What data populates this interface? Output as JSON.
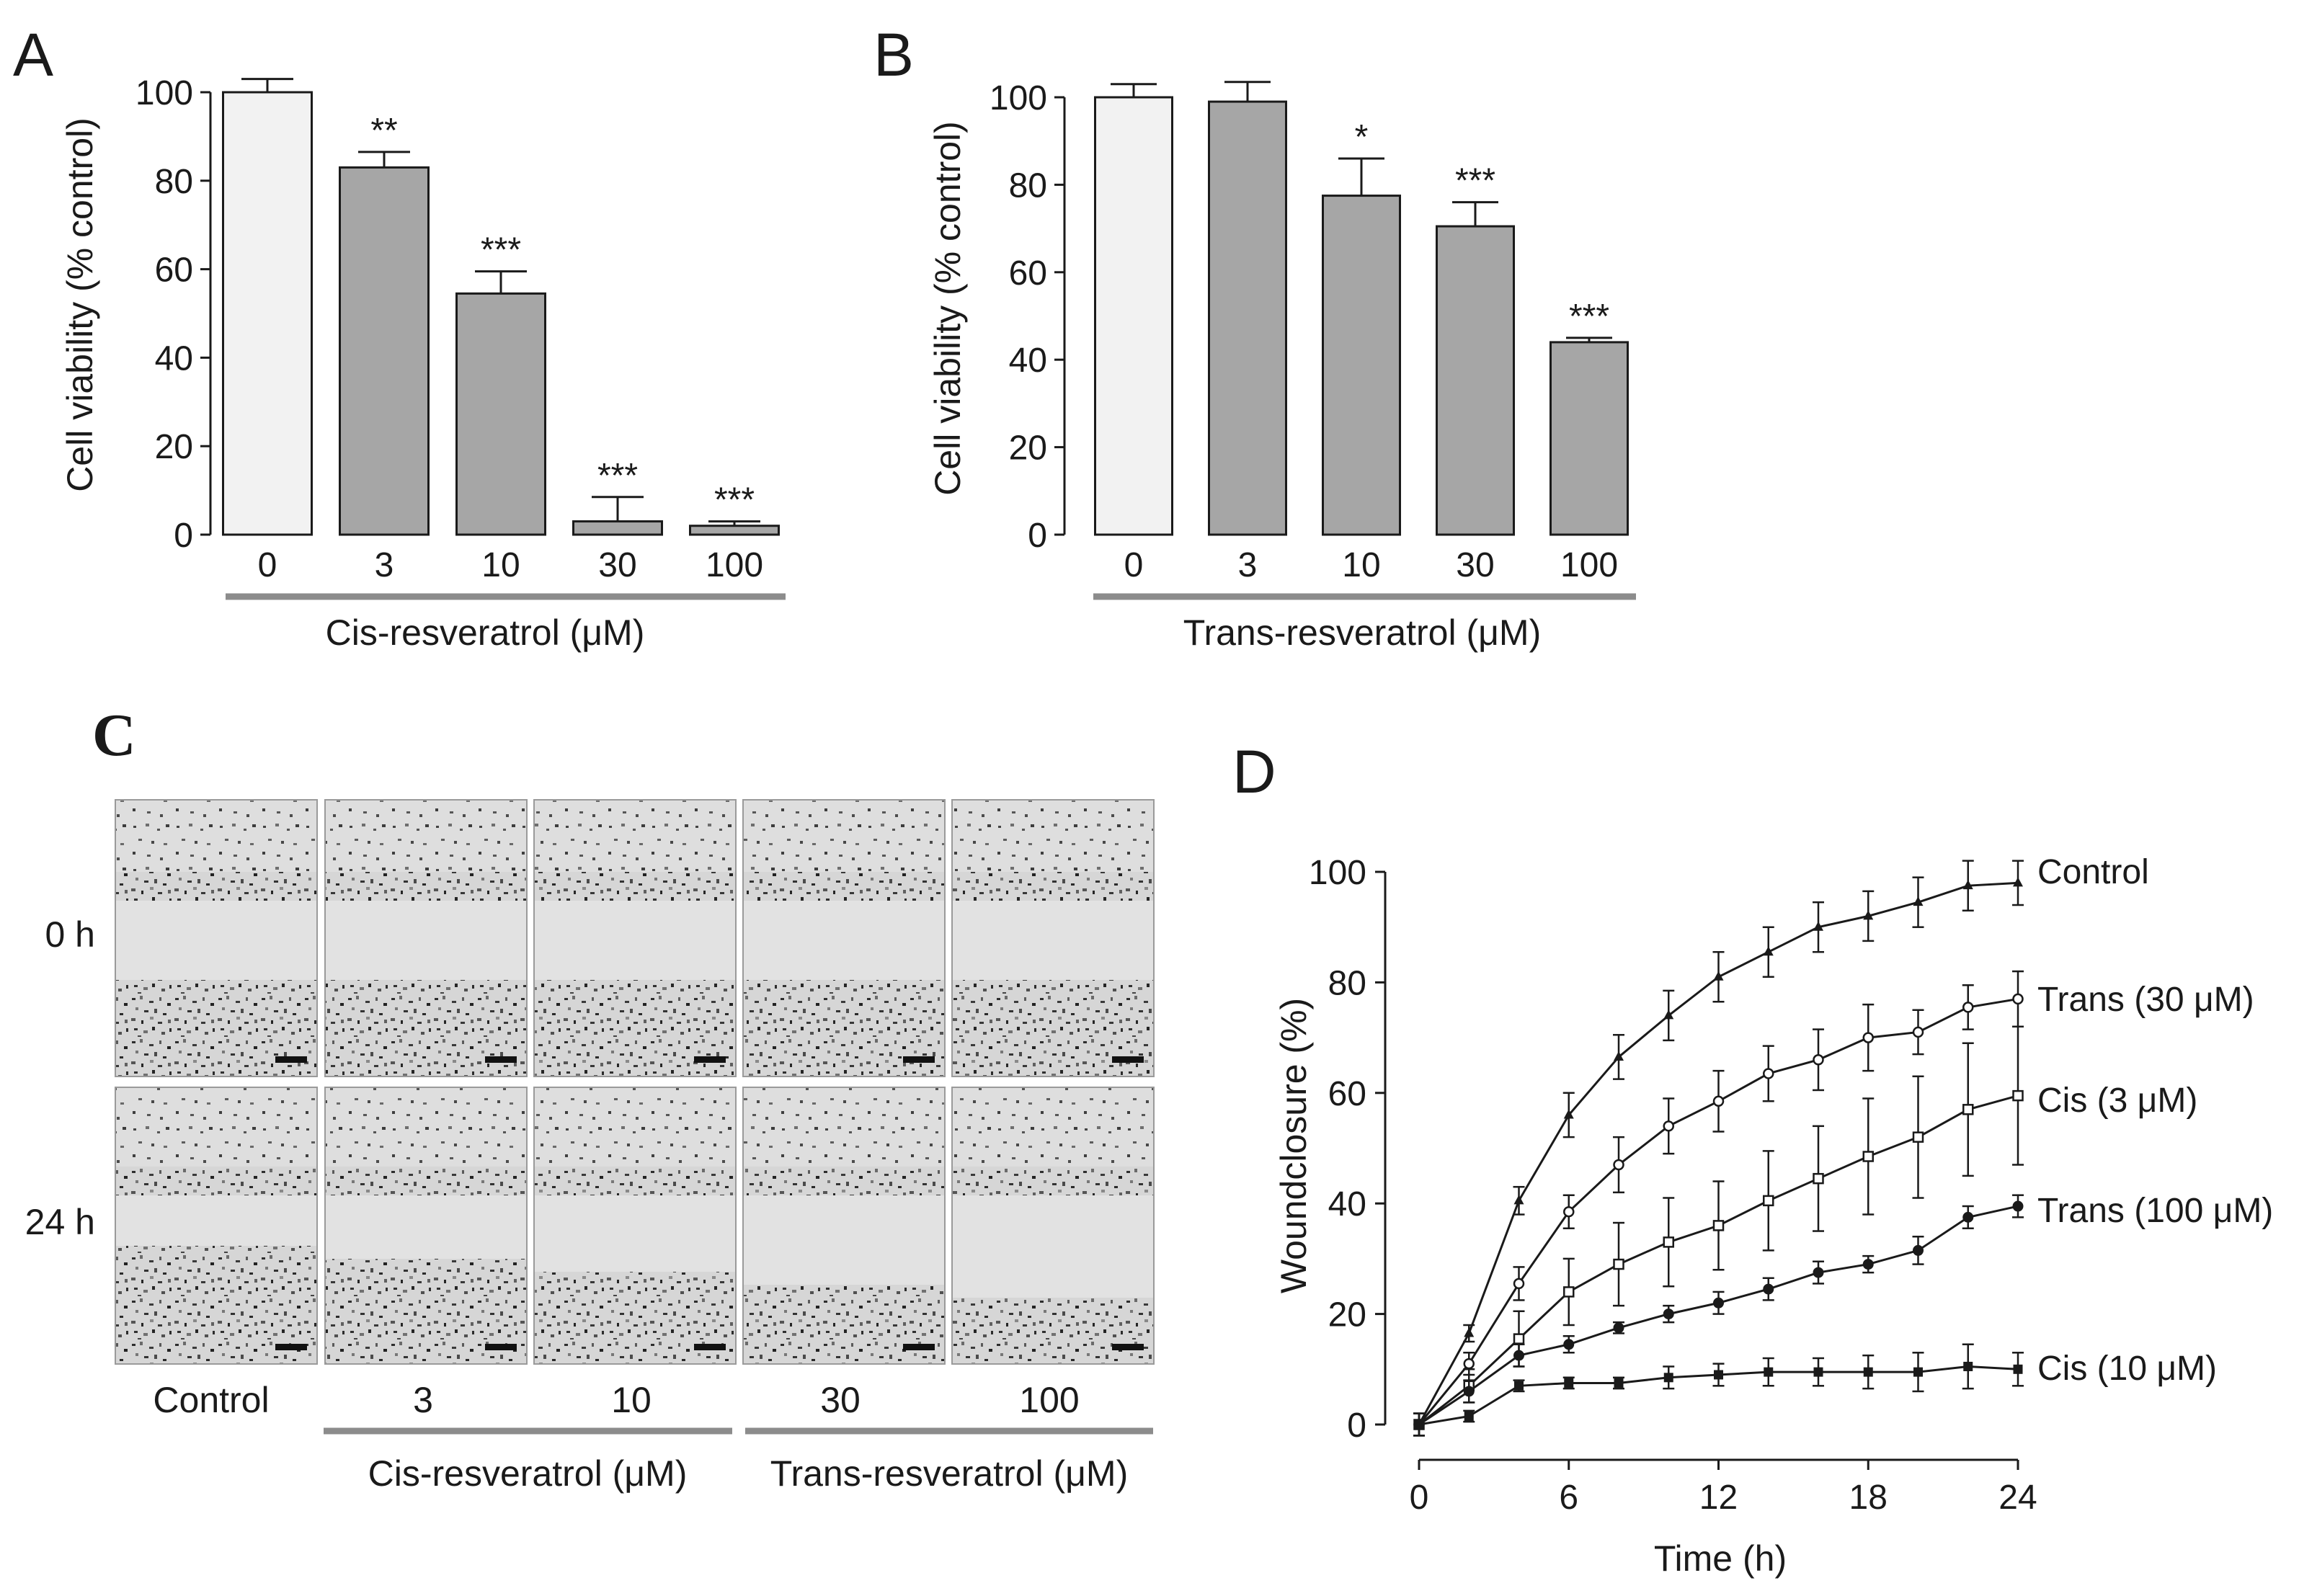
{
  "panel_labels": {
    "a": "A",
    "b": "B",
    "c": "C",
    "d": "D"
  },
  "colors": {
    "axis": "#1a1a1a",
    "control_bar": "#f2f2f2",
    "treated_bar": "#a6a6a6",
    "group_line": "#8c8c8c",
    "micro_bg": "#e2e2e2",
    "micro_cells": "#555555"
  },
  "chart_data": [
    {
      "id": "A",
      "type": "bar",
      "title": "",
      "categories": [
        "0",
        "3",
        "10",
        "30",
        "100"
      ],
      "values": [
        100,
        83,
        54.5,
        3,
        2
      ],
      "errors": [
        3,
        3.5,
        5,
        5.5,
        1
      ],
      "significance": [
        "",
        "**",
        "***",
        "***",
        "***"
      ],
      "ylabel": "Cell viability (% control)",
      "xlabel": "Cis-resveratrol (μM)",
      "ylim": [
        0,
        100
      ],
      "yticks": [
        0,
        20,
        40,
        60,
        80,
        100
      ]
    },
    {
      "id": "B",
      "type": "bar",
      "title": "",
      "categories": [
        "0",
        "3",
        "10",
        "30",
        "100"
      ],
      "values": [
        100,
        99,
        77.5,
        70.5,
        44
      ],
      "errors": [
        3,
        4.5,
        8.5,
        5.5,
        1
      ],
      "significance": [
        "",
        "",
        "*",
        "***",
        "***"
      ],
      "ylabel": "Cell viability (% control)",
      "xlabel": "Trans-resveratrol (μM)",
      "ylim": [
        0,
        100
      ],
      "yticks": [
        0,
        20,
        40,
        60,
        80,
        100
      ]
    },
    {
      "id": "D",
      "type": "line",
      "title": "",
      "xlabel": "Time (h)",
      "ylabel": "Woundclosure (%)",
      "xlim": [
        0,
        24
      ],
      "ylim": [
        0,
        100
      ],
      "xticks": [
        0,
        6,
        12,
        18,
        24
      ],
      "yticks": [
        0,
        20,
        40,
        60,
        80,
        100
      ],
      "x": [
        0,
        2,
        4,
        6,
        8,
        10,
        12,
        14,
        16,
        18,
        20,
        22,
        24
      ],
      "series": [
        {
          "name": "Control",
          "marker": "triangle",
          "values": [
            0,
            16.5,
            40.5,
            56,
            66.5,
            74,
            81,
            85.5,
            90,
            92,
            94.5,
            97.5,
            98
          ],
          "errors": [
            2,
            1.5,
            2.5,
            4,
            4,
            4.5,
            4.5,
            4.5,
            4.5,
            4.5,
            4.5,
            4.5,
            4
          ]
        },
        {
          "name": "Trans (30 μM)",
          "marker": "open-circle",
          "values": [
            0,
            11,
            25.5,
            38.5,
            47,
            54,
            58.5,
            63.5,
            66,
            70,
            71,
            75.5,
            77
          ],
          "errors": [
            2,
            2,
            3,
            3,
            5,
            5,
            5.5,
            5,
            5.5,
            6,
            4,
            4,
            5
          ]
        },
        {
          "name": "Cis (3 μM)",
          "marker": "open-square",
          "values": [
            0,
            7,
            15.5,
            24,
            29,
            33,
            36,
            40.5,
            44.5,
            48.5,
            52,
            57,
            59.5
          ],
          "errors": [
            2,
            3,
            5,
            6,
            7.5,
            8,
            8,
            9,
            9.5,
            10.5,
            11,
            12,
            12.5
          ]
        },
        {
          "name": "Trans (100 μM)",
          "marker": "filled-circle",
          "values": [
            0,
            6,
            12.5,
            14.5,
            17.5,
            20,
            22,
            24.5,
            27.5,
            29,
            31.5,
            37.5,
            39.5
          ],
          "errors": [
            2,
            2,
            2,
            1.5,
            1,
            1.5,
            2,
            2,
            2,
            1.5,
            2.5,
            2,
            2
          ]
        },
        {
          "name": "Cis (10 μM)",
          "marker": "filled-square",
          "values": [
            0,
            1.5,
            7,
            7.5,
            7.5,
            8.5,
            9,
            9.5,
            9.5,
            9.5,
            9.5,
            10.5,
            10
          ],
          "errors": [
            2,
            1,
            1,
            1,
            1,
            2,
            2,
            2.5,
            2.5,
            3,
            3.5,
            4,
            3
          ]
        }
      ]
    }
  ],
  "panel_c": {
    "row_labels": [
      "0 h",
      "24 h"
    ],
    "column_labels": [
      "Control",
      "3",
      "10",
      "30",
      "100"
    ],
    "group_labels": [
      "Cis-resveratrol (μM)",
      "Trans-resveratrol (μM)"
    ]
  }
}
